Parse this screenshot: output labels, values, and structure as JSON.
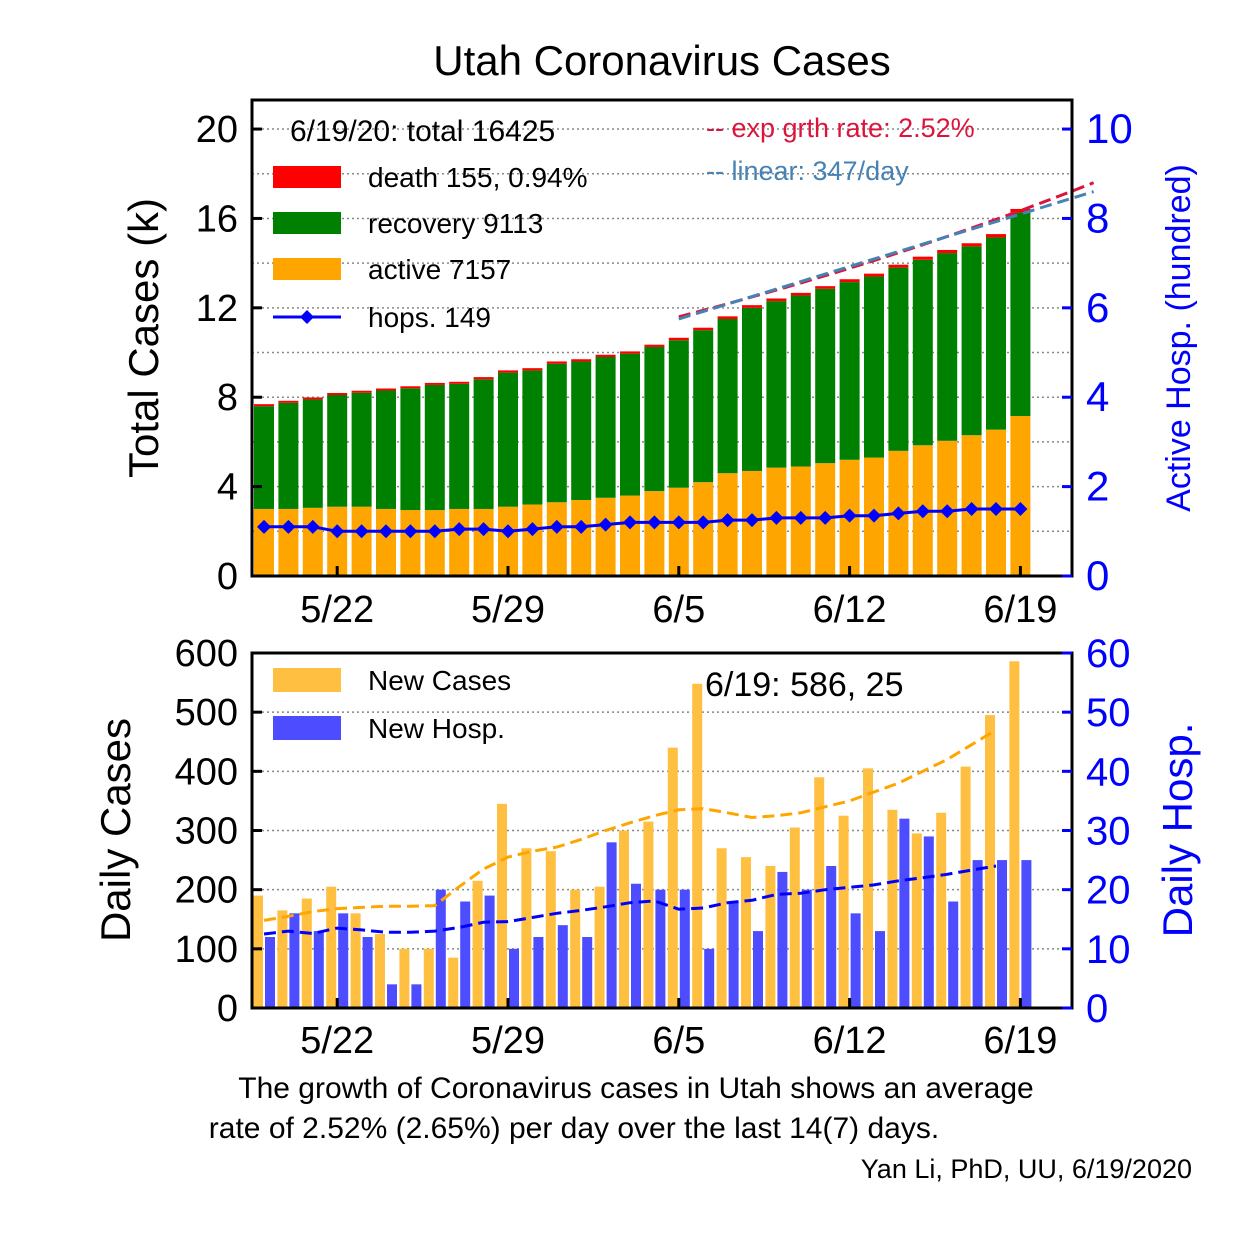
{
  "title": "Utah Coronavirus Cases",
  "caption_line1": "The growth of Coronavirus cases in Utah shows an average",
  "caption_line2": "rate of 2.52% (2.65%) per day over the last 14(7) days.",
  "credit": "Yan Li, PhD, UU, 6/19/2020",
  "colors": {
    "death": "#ff0000",
    "recovery": "#008000",
    "active": "#ffa500",
    "hosp": "#0000ff",
    "exp_fit": "#dc143c",
    "linear_fit": "#4682b4",
    "new_cases": "#ffbf40",
    "new_hosp": "#4d4dff",
    "cases_avg": "#ffa500",
    "hosp_avg": "#0000ff"
  },
  "chart_data": [
    {
      "type": "bar",
      "stacked": true,
      "x": [
        "5/19",
        "5/20",
        "5/21",
        "5/22",
        "5/23",
        "5/24",
        "5/25",
        "5/26",
        "5/27",
        "5/28",
        "5/29",
        "5/30",
        "5/31",
        "6/1",
        "6/2",
        "6/3",
        "6/4",
        "6/5",
        "6/6",
        "6/7",
        "6/8",
        "6/9",
        "6/10",
        "6/11",
        "6/12",
        "6/13",
        "6/14",
        "6/15",
        "6/16",
        "6/17",
        "6/18",
        "6/19"
      ],
      "xticks": [
        "5/22",
        "5/29",
        "6/5",
        "6/12",
        "6/19"
      ],
      "ylabel": "Total Cases (k)",
      "ylabel_right": "Active Hosp. (hundred)",
      "ylim": [
        0,
        21.3
      ],
      "yticks": [
        "0",
        "4",
        "8",
        "12",
        "16",
        "20"
      ],
      "ylim_right": [
        0,
        10.65
      ],
      "yticks_right": [
        "0",
        "2",
        "4",
        "6",
        "8",
        "10"
      ],
      "legend_header": "6/19/20: total 16425",
      "grid": "horizontal dotted",
      "series": [
        {
          "name": "active 7157",
          "key": "active",
          "values": [
            3.0,
            3.0,
            3.05,
            3.1,
            3.1,
            3.0,
            2.95,
            2.95,
            3.0,
            3.0,
            3.1,
            3.2,
            3.3,
            3.4,
            3.5,
            3.6,
            3.8,
            3.95,
            4.2,
            4.6,
            4.7,
            4.85,
            4.9,
            5.05,
            5.2,
            5.3,
            5.6,
            5.85,
            6.05,
            6.3,
            6.55,
            7.16
          ]
        },
        {
          "name": "recovery 9113",
          "key": "recovery",
          "values": [
            4.6,
            4.75,
            4.85,
            5.0,
            5.1,
            5.3,
            5.45,
            5.6,
            5.6,
            5.8,
            6.0,
            6.0,
            6.2,
            6.2,
            6.3,
            6.35,
            6.45,
            6.6,
            6.8,
            6.9,
            7.3,
            7.45,
            7.65,
            7.8,
            7.95,
            8.1,
            8.2,
            8.3,
            8.4,
            8.45,
            8.6,
            9.11
          ]
        },
        {
          "name": "death 155, 0.94%",
          "key": "death",
          "values": [
            0.09,
            0.09,
            0.09,
            0.09,
            0.09,
            0.09,
            0.09,
            0.09,
            0.09,
            0.1,
            0.1,
            0.1,
            0.1,
            0.1,
            0.1,
            0.1,
            0.1,
            0.11,
            0.11,
            0.12,
            0.12,
            0.12,
            0.12,
            0.12,
            0.13,
            0.13,
            0.13,
            0.14,
            0.14,
            0.14,
            0.15,
            0.155
          ]
        },
        {
          "name": "hops. 149",
          "key": "hosp",
          "type": "line",
          "axis": "right",
          "values": [
            1.1,
            1.1,
            1.1,
            1.0,
            1.0,
            1.0,
            1.0,
            1.0,
            1.05,
            1.05,
            1.0,
            1.05,
            1.1,
            1.1,
            1.15,
            1.2,
            1.2,
            1.2,
            1.2,
            1.25,
            1.25,
            1.3,
            1.3,
            1.3,
            1.35,
            1.35,
            1.4,
            1.45,
            1.45,
            1.5,
            1.5,
            1.5
          ]
        }
      ],
      "fits": [
        {
          "name": "-- exp grth rate: 2.52%",
          "key": "exp",
          "from": "6/5",
          "to": "6/22",
          "y_start": 11.6,
          "y_end": 17.6
        },
        {
          "name": "-- linear: 347/day",
          "key": "linear",
          "from": "6/5",
          "to": "6/22",
          "y_start": 11.5,
          "y_end": 17.2
        }
      ]
    },
    {
      "type": "bar",
      "x": [
        "5/19",
        "5/20",
        "5/21",
        "5/22",
        "5/23",
        "5/24",
        "5/25",
        "5/26",
        "5/27",
        "5/28",
        "5/29",
        "5/30",
        "5/31",
        "6/1",
        "6/2",
        "6/3",
        "6/4",
        "6/5",
        "6/6",
        "6/7",
        "6/8",
        "6/9",
        "6/10",
        "6/11",
        "6/12",
        "6/13",
        "6/14",
        "6/15",
        "6/16",
        "6/17",
        "6/18",
        "6/19"
      ],
      "xticks": [
        "5/22",
        "5/29",
        "6/5",
        "6/12",
        "6/19"
      ],
      "ylabel": "Daily Cases",
      "ylabel_right": "Daily Hosp.",
      "ylim": [
        0,
        600
      ],
      "yticks": [
        "0",
        "100",
        "200",
        "300",
        "400",
        "500",
        "600"
      ],
      "ylim_right": [
        0,
        60
      ],
      "yticks_right": [
        "0",
        "10",
        "20",
        "30",
        "40",
        "50",
        "60"
      ],
      "annotation": "6/19: 586, 25",
      "grid": "horizontal dotted",
      "series": [
        {
          "name": "New Cases",
          "key": "new_cases",
          "axis": "left",
          "values": [
            190,
            165,
            185,
            205,
            160,
            125,
            100,
            100,
            85,
            215,
            345,
            270,
            265,
            200,
            205,
            300,
            315,
            440,
            548,
            270,
            255,
            240,
            305,
            390,
            325,
            405,
            335,
            295,
            330,
            408,
            495,
            586
          ]
        },
        {
          "name": "New Hosp.",
          "key": "new_hosp",
          "axis": "right",
          "values": [
            12,
            16,
            13,
            16,
            12,
            4,
            4,
            20,
            18,
            19,
            10,
            12,
            14,
            12,
            28,
            21,
            20,
            20,
            10,
            18,
            13,
            23,
            20,
            24,
            16,
            13,
            32,
            29,
            18,
            25,
            25,
            25
          ]
        }
      ],
      "averages": [
        {
          "key": "cases_avg",
          "axis": "left",
          "values": [
            148,
            155,
            163,
            168,
            170,
            172,
            172,
            173,
            205,
            235,
            255,
            265,
            272,
            285,
            300,
            313,
            325,
            335,
            337,
            330,
            322,
            325,
            330,
            340,
            350,
            365,
            380,
            400,
            420,
            445,
            470
          ]
        },
        {
          "key": "hosp_avg",
          "axis": "right",
          "values": [
            12.5,
            13,
            12.6,
            13.5,
            13.2,
            12.8,
            12.8,
            13,
            13.6,
            14.5,
            14.6,
            15.3,
            16,
            16.5,
            17.1,
            17.8,
            18.1,
            16.7,
            16.9,
            17.8,
            18.2,
            19.2,
            19.4,
            20,
            20.4,
            20.8,
            21.5,
            22,
            22.6,
            23.3,
            24
          ]
        }
      ]
    }
  ]
}
